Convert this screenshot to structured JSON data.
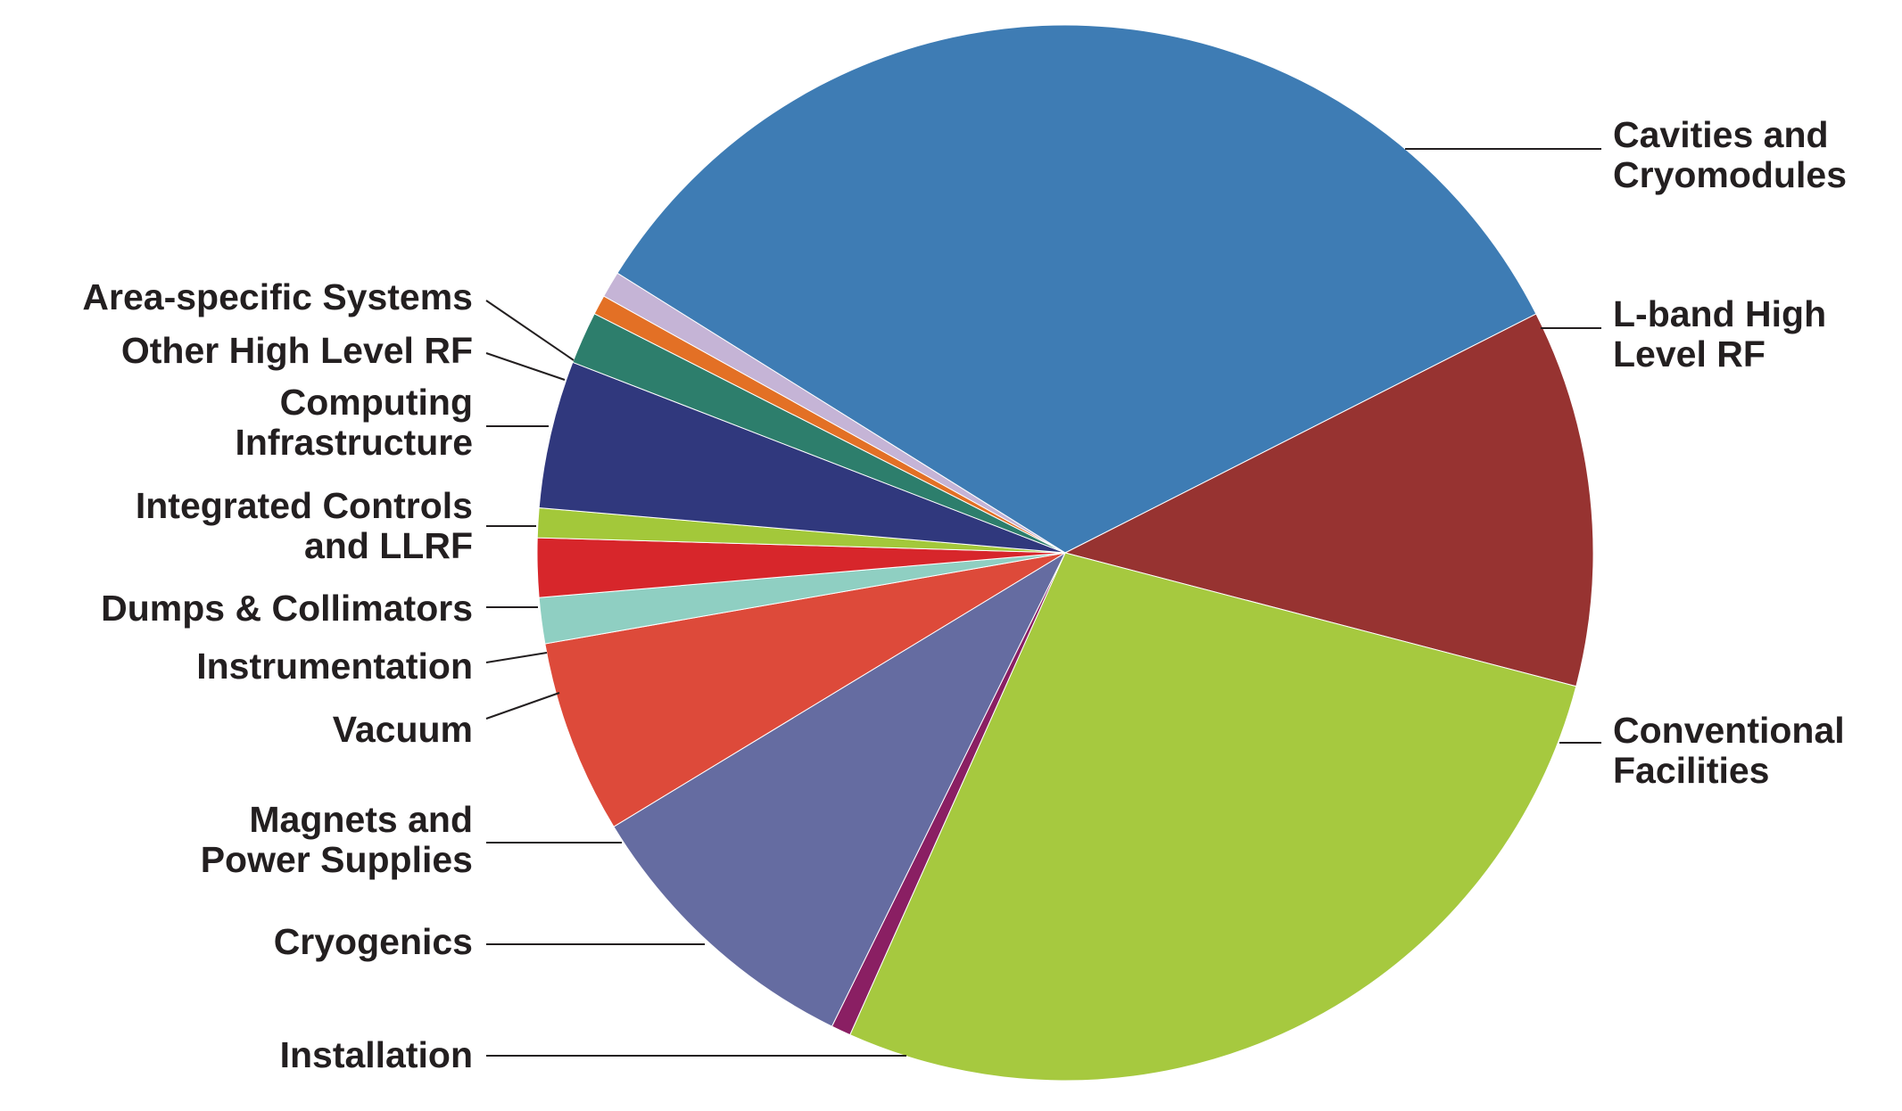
{
  "chart_data": {
    "type": "pie",
    "title": "",
    "start_angle_deg": 212,
    "direction": "clockwise",
    "slices": [
      {
        "label": [
          "Cavities and",
          "Cryomodules"
        ],
        "value": 33.5,
        "color": "#3e7cb4",
        "side": "right"
      },
      {
        "label": [
          "L-band High",
          "Level RF"
        ],
        "value": 11.5,
        "color": "#973331",
        "side": "right"
      },
      {
        "label": [
          "Conventional",
          "Facilities"
        ],
        "value": 27.5,
        "color": "#a6c93f",
        "side": "right"
      },
      {
        "label": [
          "Installation"
        ],
        "value": 0.6,
        "color": "#8a1f63",
        "side": "left"
      },
      {
        "label": [
          "Cryogenics"
        ],
        "value": 9.0,
        "color": "#656ca1",
        "side": "left"
      },
      {
        "label": [
          "Magnets and",
          "Power Supplies"
        ],
        "value": 5.9,
        "color": "#dd4a3a",
        "side": "left"
      },
      {
        "label": [
          "Vacuum"
        ],
        "value": 1.4,
        "color": "#8fcfc2",
        "side": "left"
      },
      {
        "label": [
          "Instrumentation"
        ],
        "value": 1.8,
        "color": "#d7262b",
        "side": "left"
      },
      {
        "label": [
          "Dumps & Collimators"
        ],
        "value": 0.9,
        "color": "#a3c83a",
        "side": "left"
      },
      {
        "label": [
          "Integrated Controls",
          "and LLRF"
        ],
        "value": 4.5,
        "color": "#30387d",
        "side": "left"
      },
      {
        "label": [
          "Computing",
          "Infrastructure"
        ],
        "value": 1.6,
        "color": "#2d7e6c",
        "side": "left"
      },
      {
        "label": [
          "Other High Level RF"
        ],
        "value": 0.6,
        "color": "#e37025",
        "side": "left"
      },
      {
        "label": [
          "Area-specific Systems"
        ],
        "value": 0.8,
        "color": "#c5b4d6",
        "side": "left"
      }
    ]
  }
}
